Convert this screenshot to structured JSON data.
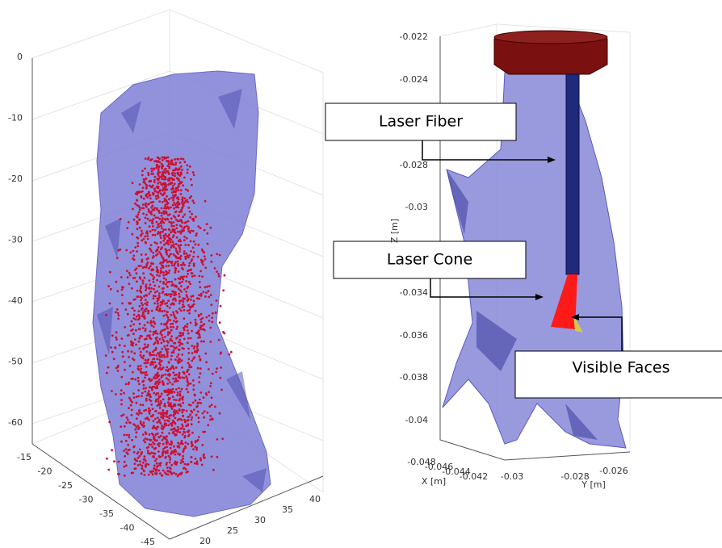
{
  "left_plot": {
    "z_ticks": [
      0,
      -10,
      -20,
      -30,
      -40,
      -50,
      -60
    ],
    "x_ticks": [
      -15,
      -20,
      -25,
      -30,
      -35,
      -40,
      -45
    ],
    "y_ticks": [
      20,
      25,
      30,
      35,
      40
    ]
  },
  "right_plot": {
    "z_ticks": [
      -0.022,
      -0.024,
      -0.028,
      -0.03,
      -0.034,
      -0.036,
      -0.038,
      -0.04
    ],
    "x_ticks": [
      -0.048,
      -0.046,
      -0.044,
      -0.042
    ],
    "y_ticks": [
      -0.03,
      -0.028,
      -0.026
    ],
    "z_label": "Z [m]",
    "x_label": "X [m]",
    "y_label": "Y [m]",
    "callouts": [
      "Laser Fiber",
      "Laser Cone",
      "Visible Faces"
    ]
  }
}
